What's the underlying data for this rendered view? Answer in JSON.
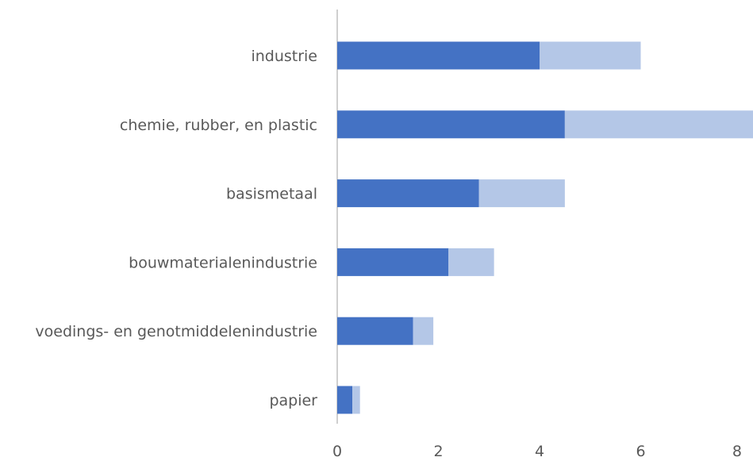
{
  "chart_data": {
    "type": "bar",
    "orientation": "horizontal",
    "stacked": true,
    "categories": [
      "industrie",
      "chemie, rubber, en plastic",
      "basismetaal",
      "bouwmaterialenindustrie",
      "voedings- en genotmiddelenindustrie",
      "papier"
    ],
    "series": [
      {
        "values": [
          4.0,
          4.5,
          2.8,
          2.2,
          1.5,
          0.3
        ],
        "color": "#4472C4"
      },
      {
        "values": [
          2.0,
          3.8,
          1.7,
          0.9,
          0.4,
          0.15
        ],
        "color": "#B4C7E7"
      }
    ],
    "x_ticks": [
      "0",
      "2",
      "4",
      "6",
      "8"
    ],
    "xlim": [
      0,
      8
    ],
    "grid": false,
    "legend": "none",
    "title": "",
    "xlabel": "",
    "ylabel": ""
  }
}
